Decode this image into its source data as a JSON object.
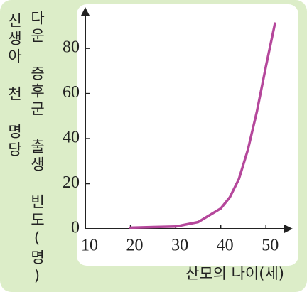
{
  "chart_data": {
    "type": "line",
    "ylabel": [
      "신생아 천 명당",
      "다운 증후군 출생 빈도(명)"
    ],
    "xlabel": "산모의 나이(세)",
    "x": [
      20,
      25,
      30,
      35,
      40,
      42,
      44,
      46,
      48,
      50,
      52
    ],
    "values": [
      0.5,
      0.8,
      1,
      3,
      9,
      14,
      22,
      35,
      52,
      72,
      91
    ],
    "color": "#b5479b",
    "xlim": [
      10,
      55
    ],
    "xticks": [
      10,
      20,
      30,
      40,
      50
    ],
    "ylim": [
      0,
      98
    ],
    "yticks": [
      0,
      20,
      40,
      60,
      80
    ]
  }
}
